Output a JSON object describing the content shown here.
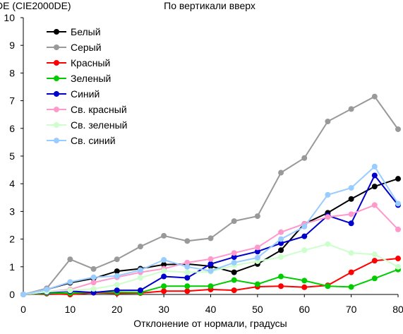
{
  "chart_data": {
    "type": "line",
    "title": "По вертикали вверх",
    "ylabel": "DE (CIE2000DE)",
    "xlabel": "Отклонение от нормали, градусы",
    "x": [
      0,
      5,
      10,
      15,
      20,
      25,
      30,
      35,
      40,
      45,
      50,
      55,
      60,
      65,
      70,
      75,
      80
    ],
    "xlim": [
      0,
      80
    ],
    "ylim": [
      0,
      10
    ],
    "x_ticks": [
      0,
      10,
      20,
      30,
      40,
      50,
      60,
      70,
      80
    ],
    "y_ticks": [
      0,
      1,
      2,
      3,
      4,
      5,
      6,
      7,
      8,
      9,
      10
    ],
    "grid": false,
    "legend_position": "top-left",
    "series": [
      {
        "name": "Белый",
        "color": "#000000",
        "values": [
          0,
          0.18,
          0.42,
          0.58,
          0.84,
          0.93,
          1.08,
          1.1,
          1.02,
          0.8,
          1.1,
          1.6,
          2.55,
          2.95,
          3.45,
          3.9,
          4.18
        ]
      },
      {
        "name": "Серый",
        "color": "#999999",
        "values": [
          0,
          0.22,
          1.27,
          0.92,
          1.27,
          1.73,
          2.12,
          1.93,
          2.03,
          2.65,
          2.83,
          4.4,
          4.93,
          6.25,
          6.7,
          7.15,
          5.97
        ]
      },
      {
        "name": "Красный",
        "color": "#ff0000",
        "values": [
          0,
          0.03,
          0.0,
          0.06,
          0.04,
          0.05,
          0.12,
          0.12,
          0.18,
          0.15,
          0.28,
          0.3,
          0.26,
          0.33,
          0.8,
          1.22,
          1.3
        ]
      },
      {
        "name": "Зеленый",
        "color": "#00cc00",
        "values": [
          0,
          0.05,
          0.05,
          0.08,
          0.08,
          0.07,
          0.3,
          0.3,
          0.3,
          0.52,
          0.37,
          0.65,
          0.5,
          0.3,
          0.27,
          0.58,
          0.9
        ]
      },
      {
        "name": "Синий",
        "color": "#0000cc",
        "values": [
          0,
          0.08,
          0.12,
          0.07,
          0.15,
          0.15,
          0.65,
          0.6,
          1.1,
          1.35,
          1.55,
          1.85,
          2.1,
          2.85,
          2.57,
          4.3,
          3.23
        ]
      },
      {
        "name": "Св. красный",
        "color": "#ff99cc",
        "values": [
          0,
          0.1,
          0.18,
          0.43,
          0.62,
          0.8,
          0.93,
          1.15,
          1.28,
          1.5,
          1.7,
          2.25,
          2.55,
          2.8,
          2.9,
          3.23,
          2.35
        ]
      },
      {
        "name": "Св. зеленый",
        "color": "#ccffcc",
        "values": [
          0,
          0.1,
          0.15,
          0.2,
          0.35,
          0.6,
          0.85,
          0.8,
          0.82,
          1.05,
          1.2,
          1.35,
          1.6,
          1.82,
          1.5,
          1.45,
          1.0
        ]
      },
      {
        "name": "Св. синий",
        "color": "#99ccff",
        "values": [
          0,
          0.18,
          0.45,
          0.62,
          0.67,
          0.88,
          1.25,
          1.0,
          0.85,
          1.15,
          1.33,
          2.0,
          2.45,
          3.6,
          3.85,
          4.62,
          3.28
        ]
      }
    ]
  }
}
